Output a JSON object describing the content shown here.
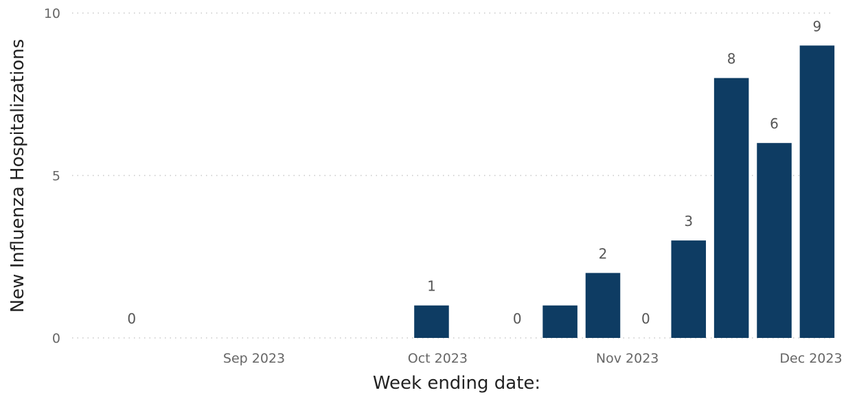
{
  "chart_data": {
    "type": "bar",
    "xlabel": "Week ending date:",
    "ylabel": "New Influenza Hospitalizations",
    "ylim": [
      0,
      10
    ],
    "y_ticks": [
      0,
      5,
      10
    ],
    "grid": true,
    "bar_color": "#0e3c63",
    "x_ticks": [
      {
        "date": "2023-09-01",
        "label": "Sep 2023"
      },
      {
        "date": "2023-10-01",
        "label": "Oct 2023"
      },
      {
        "date": "2023-11-01",
        "label": "Nov 2023"
      },
      {
        "date": "2023-12-01",
        "label": "Dec 2023"
      }
    ],
    "x": [
      "2023-08-12",
      "2023-09-30",
      "2023-10-14",
      "2023-10-21",
      "2023-10-28",
      "2023-11-04",
      "2023-11-11",
      "2023-11-18",
      "2023-11-25",
      "2023-12-02"
    ],
    "values": [
      0,
      1,
      0,
      1,
      2,
      0,
      3,
      8,
      6,
      9
    ],
    "data_labels": [
      "0",
      "1",
      "0",
      "",
      "2",
      "0",
      "3",
      "8",
      "6",
      "9"
    ]
  }
}
